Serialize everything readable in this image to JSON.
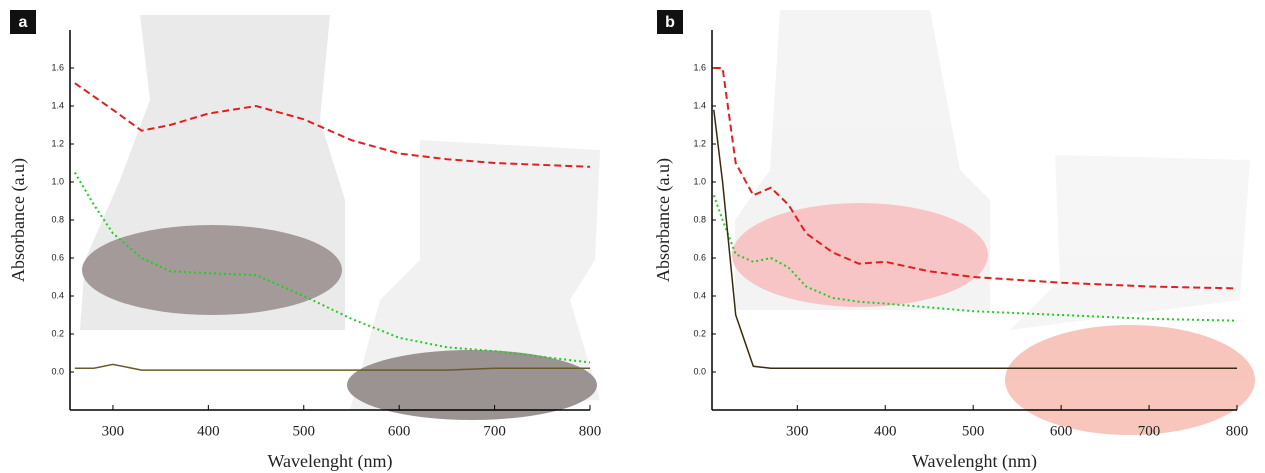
{
  "chart_data": [
    {
      "type": "line",
      "label": "a",
      "x_label": "Wavelenght (nm)",
      "y_label": "Absorbance (a.u)",
      "xlim": [
        255,
        800
      ],
      "ylim": [
        -0.2,
        1.8
      ],
      "xticks": [
        300,
        400,
        500,
        600,
        700,
        800
      ],
      "yticks": [
        {
          "value": 0,
          "label": "0.0"
        },
        0.2,
        0.4,
        0.6,
        0.8,
        {
          "value": 1,
          "label": "1.0"
        },
        1.2,
        1.4,
        1.6
      ],
      "x": [
        260,
        280,
        300,
        330,
        360,
        400,
        450,
        500,
        550,
        600,
        650,
        700,
        750,
        800
      ],
      "series": [
        {
          "color": "#e02020",
          "dash": "dashed",
          "values": [
            1.52,
            1.45,
            1.38,
            1.27,
            1.3,
            1.36,
            1.4,
            1.33,
            1.22,
            1.15,
            1.12,
            1.1,
            1.09,
            1.08
          ]
        },
        {
          "color": "#22cc22",
          "dash": "dotted",
          "values": [
            1.05,
            0.88,
            0.73,
            0.6,
            0.53,
            0.52,
            0.51,
            0.4,
            0.28,
            0.18,
            0.13,
            0.11,
            0.08,
            0.05
          ]
        },
        {
          "color": "#6b5a2a",
          "dash": "solid",
          "values": [
            0.02,
            0.02,
            0.04,
            0.01,
            0.01,
            0.01,
            0.01,
            0.01,
            0.01,
            0.01,
            0.01,
            0.02,
            0.02,
            0.02
          ]
        }
      ]
    },
    {
      "type": "line",
      "label": "b",
      "x_label": "Wavelenght (nm)",
      "y_label": "Absorbance (a.u)",
      "xlim": [
        203,
        800
      ],
      "ylim": [
        -0.2,
        1.8
      ],
      "xticks": [
        300,
        400,
        500,
        600,
        700,
        800
      ],
      "yticks": [
        {
          "value": 0,
          "label": "0.0"
        },
        0.2,
        0.4,
        0.6,
        0.8,
        {
          "value": 1,
          "label": "1.0"
        },
        1.2,
        1.4,
        1.6
      ],
      "x": [
        205,
        215,
        230,
        250,
        270,
        290,
        310,
        340,
        370,
        400,
        450,
        500,
        600,
        700,
        800
      ],
      "series": [
        {
          "color": "#e02020",
          "dash": "dashed",
          "values": [
            1.6,
            1.6,
            1.1,
            0.93,
            0.97,
            0.88,
            0.73,
            0.63,
            0.57,
            0.58,
            0.53,
            0.5,
            0.47,
            0.45,
            0.44
          ]
        },
        {
          "color": "#22cc22",
          "dash": "dotted",
          "values": [
            0.93,
            0.8,
            0.62,
            0.58,
            0.6,
            0.55,
            0.45,
            0.39,
            0.37,
            0.36,
            0.34,
            0.32,
            0.3,
            0.28,
            0.27
          ]
        },
        {
          "color": "#3a2a10",
          "dash": "solid",
          "values": [
            1.38,
            1.0,
            0.3,
            0.03,
            0.02,
            0.02,
            0.02,
            0.02,
            0.02,
            0.02,
            0.02,
            0.02,
            0.02,
            0.02,
            0.02
          ]
        }
      ]
    }
  ]
}
